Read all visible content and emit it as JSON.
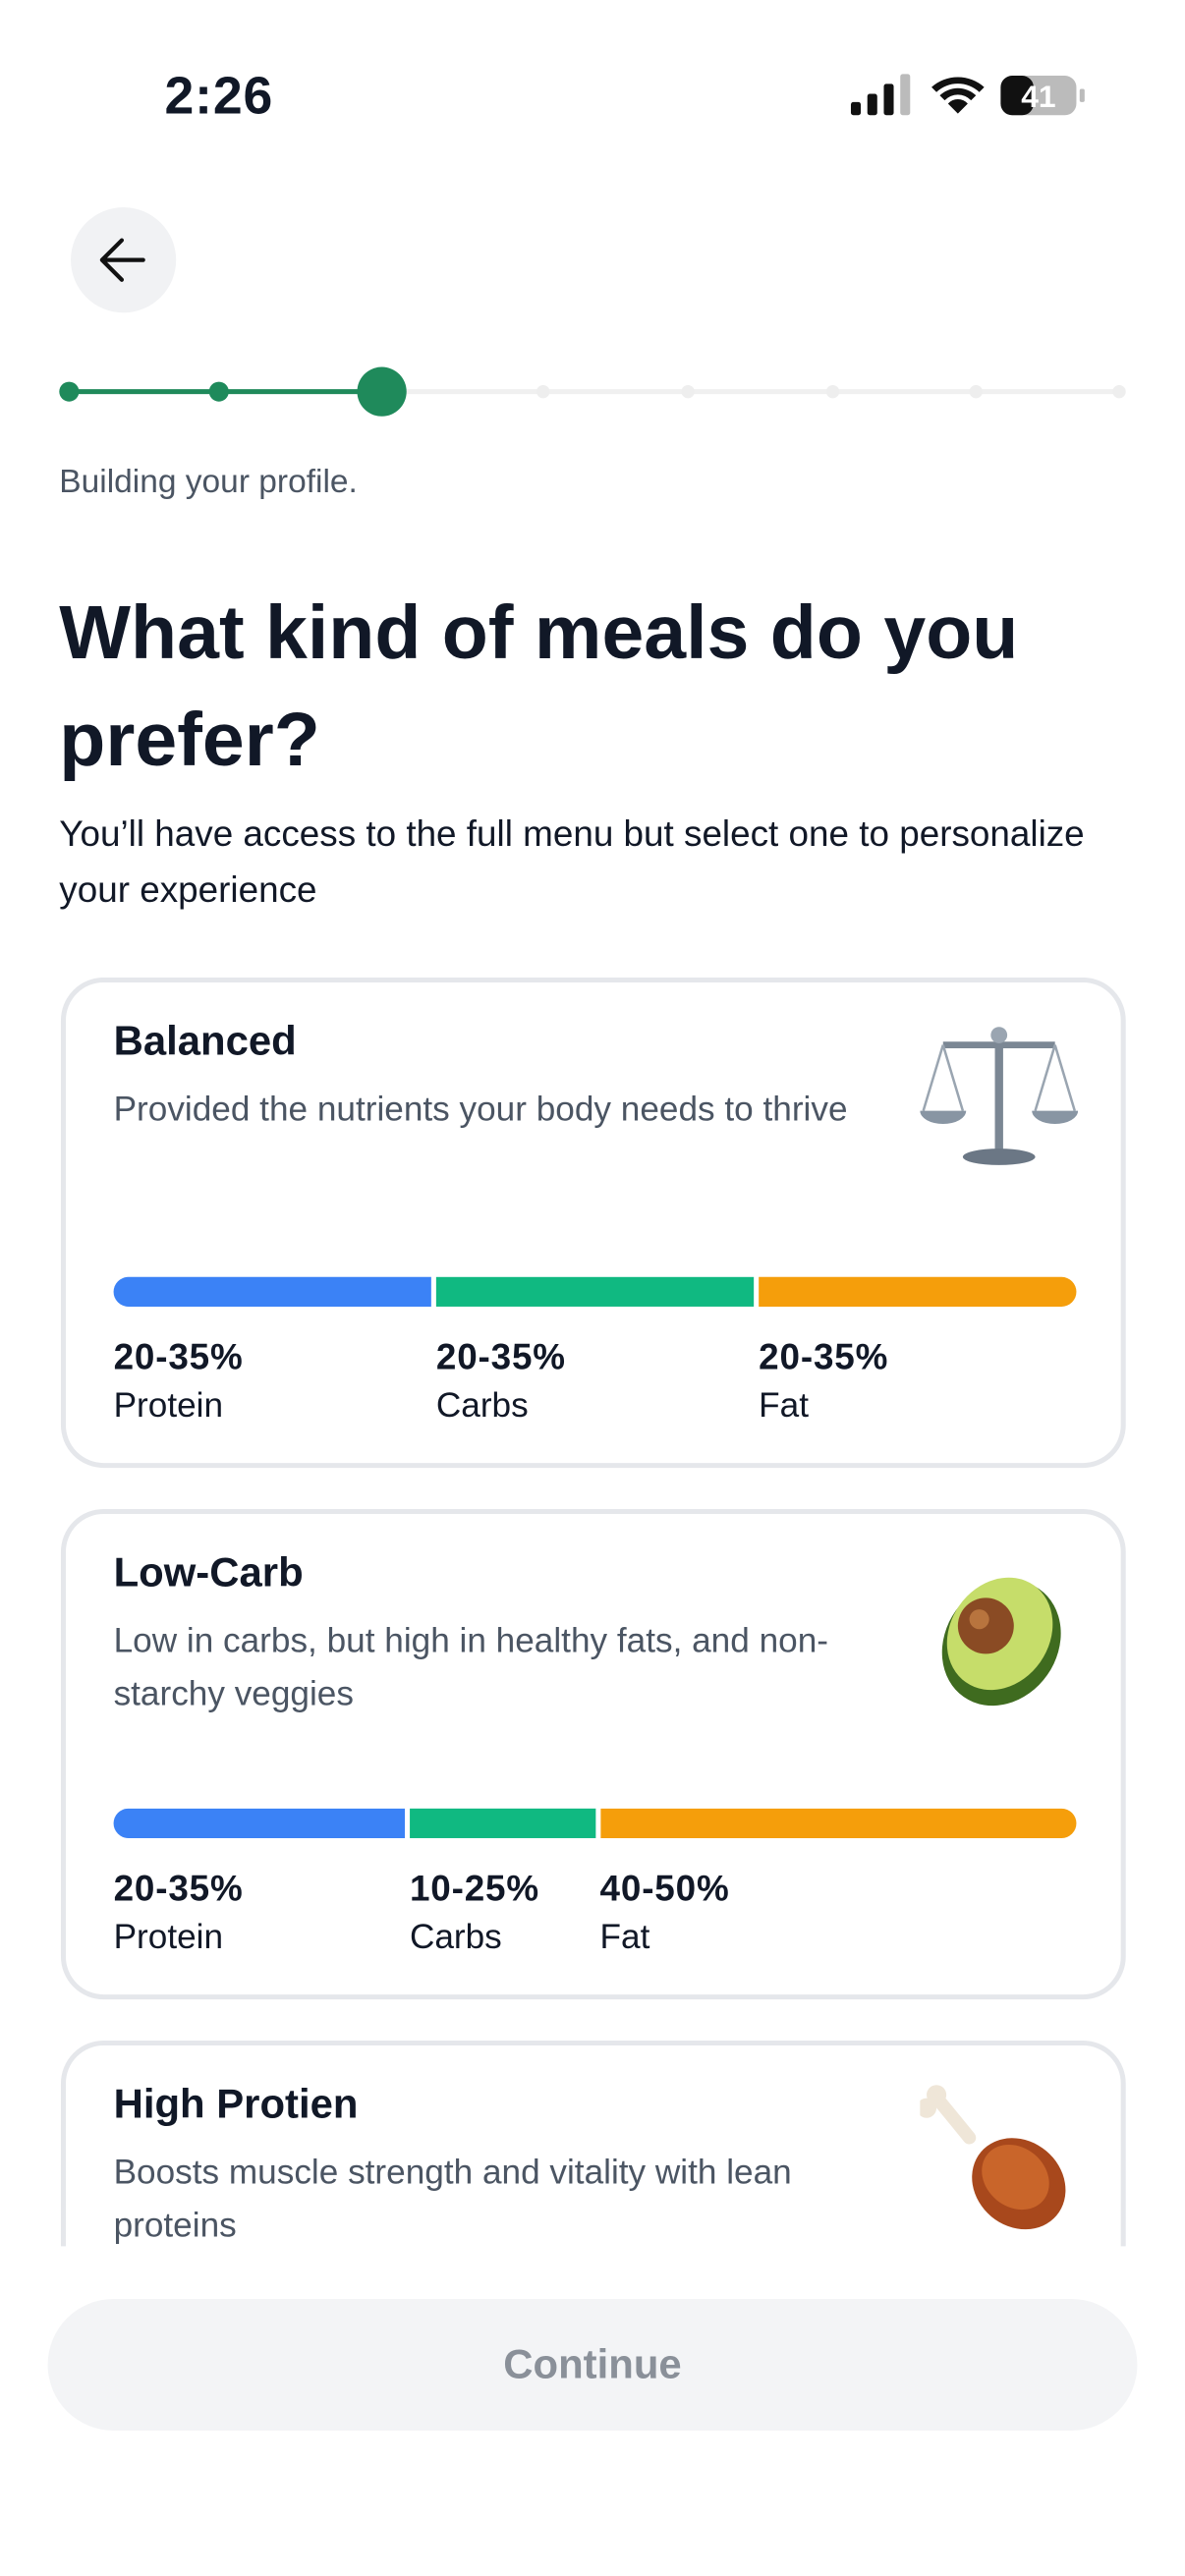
{
  "status_bar": {
    "time": "2:26",
    "battery": "41"
  },
  "progress_text": "Building your profile.",
  "title": "What kind of meals do you prefer?",
  "subtitle": "You’ll have access to the full menu but select one to personalize your experience",
  "cards": [
    {
      "name": "Balanced",
      "description": "Provided the nutrients your body needs to thrive",
      "macros": [
        {
          "range": "20-35%",
          "label": "Protein"
        },
        {
          "range": "20-35%",
          "label": "Carbs"
        },
        {
          "range": "20-35%",
          "label": "Fat"
        }
      ]
    },
    {
      "name": "Low-Carb",
      "description": "Low in carbs, but high in healthy fats, and non-starchy veggies",
      "macros": [
        {
          "range": "20-35%",
          "label": "Protein"
        },
        {
          "range": "10-25%",
          "label": "Carbs"
        },
        {
          "range": "40-50%",
          "label": "Fat"
        }
      ]
    },
    {
      "name": "High Protien",
      "description": "Boosts muscle strength and vitality with lean proteins"
    }
  ],
  "button": "Continue"
}
